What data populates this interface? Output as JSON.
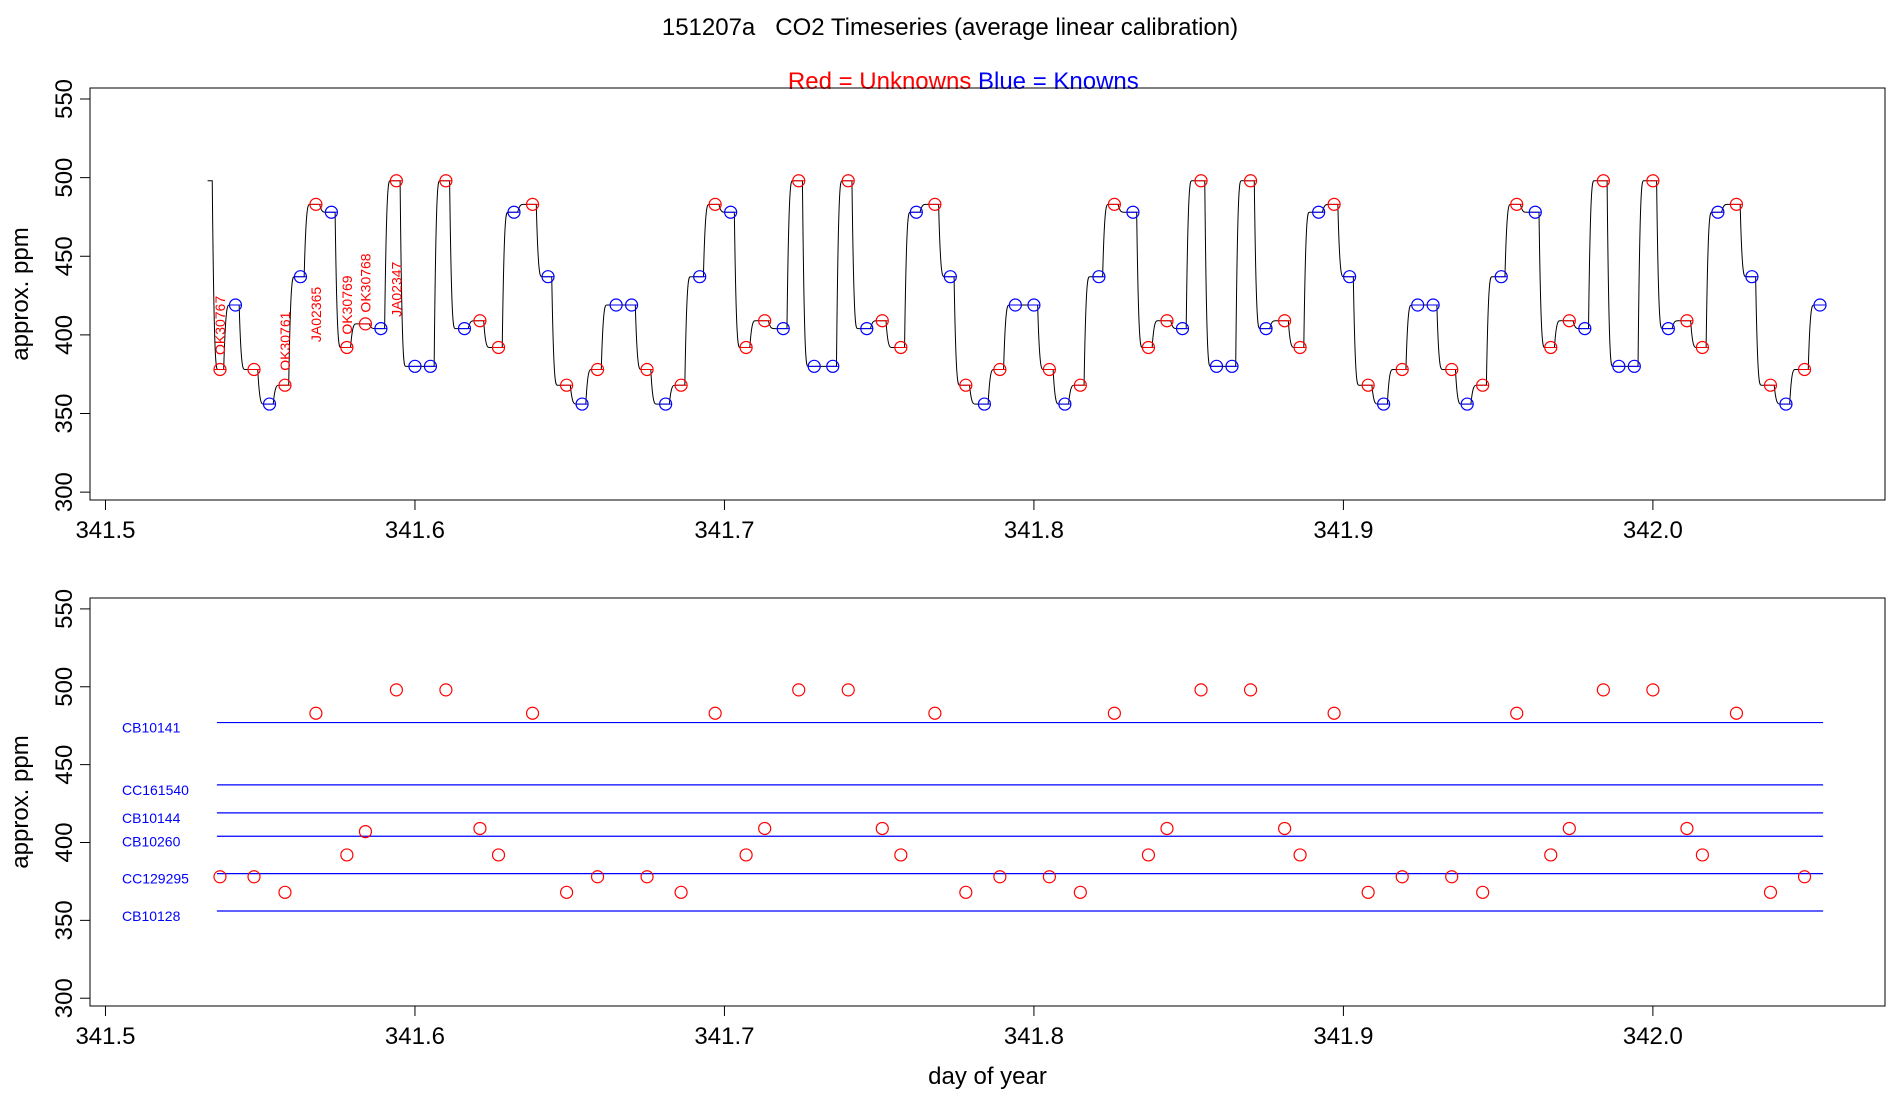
{
  "figure": {
    "title": "151207a   CO2 Timeseries (average linear calibration)",
    "subtitle_parts": [
      {
        "text": "Red = Unknowns",
        "color": "#ff0000"
      },
      {
        "text": " Blue = Knowns",
        "color": "#0000ff"
      }
    ]
  },
  "colors": {
    "unknown": "#ff0000",
    "known": "#0000ff",
    "trace": "#000000"
  },
  "chart_data": [
    {
      "type": "line",
      "panel": "top",
      "xlabel": "",
      "ylabel": "approx. ppm",
      "xlim": [
        341.495,
        342.075
      ],
      "ylim": [
        295,
        557
      ],
      "x_ticks": [
        341.5,
        341.6,
        341.7,
        341.8,
        341.9,
        342.0
      ],
      "x_tick_labels": [
        "341.5",
        "341.6",
        "341.7",
        "341.8",
        "341.9",
        "342.0"
      ],
      "y_ticks": [
        300,
        350,
        400,
        450,
        500,
        550
      ],
      "y_tick_labels": [
        "300",
        "350",
        "400",
        "450",
        "500",
        "550"
      ],
      "trace_start": {
        "x": 341.533,
        "y": 498
      },
      "series": [
        {
          "name": "Unknowns",
          "color": "#ff0000",
          "points": [
            [
              341.537,
              378
            ],
            [
              341.548,
              378
            ],
            [
              341.558,
              368
            ],
            [
              341.568,
              483
            ],
            [
              341.578,
              392
            ],
            [
              341.584,
              407
            ],
            [
              341.594,
              498
            ],
            [
              341.61,
              498
            ],
            [
              341.621,
              409
            ],
            [
              341.627,
              392
            ],
            [
              341.638,
              483
            ],
            [
              341.649,
              368
            ],
            [
              341.659,
              378
            ],
            [
              341.675,
              378
            ],
            [
              341.686,
              368
            ],
            [
              341.697,
              483
            ],
            [
              341.707,
              392
            ],
            [
              341.713,
              409
            ],
            [
              341.724,
              498
            ],
            [
              341.74,
              498
            ],
            [
              341.751,
              409
            ],
            [
              341.757,
              392
            ],
            [
              341.768,
              483
            ],
            [
              341.778,
              368
            ],
            [
              341.789,
              378
            ],
            [
              341.805,
              378
            ],
            [
              341.815,
              368
            ],
            [
              341.826,
              483
            ],
            [
              341.837,
              392
            ],
            [
              341.843,
              409
            ],
            [
              341.854,
              498
            ],
            [
              341.87,
              498
            ],
            [
              341.881,
              409
            ],
            [
              341.886,
              392
            ],
            [
              341.897,
              483
            ],
            [
              341.908,
              368
            ],
            [
              341.919,
              378
            ],
            [
              341.935,
              378
            ],
            [
              341.945,
              368
            ],
            [
              341.956,
              483
            ],
            [
              341.967,
              392
            ],
            [
              341.973,
              409
            ],
            [
              341.984,
              498
            ],
            [
              342.0,
              498
            ],
            [
              342.011,
              409
            ],
            [
              342.016,
              392
            ],
            [
              342.027,
              483
            ],
            [
              342.038,
              368
            ],
            [
              342.049,
              378
            ]
          ]
        },
        {
          "name": "Knowns",
          "color": "#0000ff",
          "points": [
            [
              341.542,
              419
            ],
            [
              341.553,
              356
            ],
            [
              341.563,
              437
            ],
            [
              341.573,
              478
            ],
            [
              341.589,
              404
            ],
            [
              341.6,
              380
            ],
            [
              341.605,
              380
            ],
            [
              341.616,
              404
            ],
            [
              341.632,
              478
            ],
            [
              341.643,
              437
            ],
            [
              341.654,
              356
            ],
            [
              341.665,
              419
            ],
            [
              341.67,
              419
            ],
            [
              341.681,
              356
            ],
            [
              341.692,
              437
            ],
            [
              341.702,
              478
            ],
            [
              341.719,
              404
            ],
            [
              341.729,
              380
            ],
            [
              341.735,
              380
            ],
            [
              341.746,
              404
            ],
            [
              341.762,
              478
            ],
            [
              341.773,
              437
            ],
            [
              341.784,
              356
            ],
            [
              341.794,
              419
            ],
            [
              341.8,
              419
            ],
            [
              341.81,
              356
            ],
            [
              341.821,
              437
            ],
            [
              341.832,
              478
            ],
            [
              341.848,
              404
            ],
            [
              341.859,
              380
            ],
            [
              341.864,
              380
            ],
            [
              341.875,
              404
            ],
            [
              341.892,
              478
            ],
            [
              341.902,
              437
            ],
            [
              341.913,
              356
            ],
            [
              341.924,
              419
            ],
            [
              341.929,
              419
            ],
            [
              341.94,
              356
            ],
            [
              341.951,
              437
            ],
            [
              341.962,
              478
            ],
            [
              341.978,
              404
            ],
            [
              341.989,
              380
            ],
            [
              341.994,
              380
            ],
            [
              342.005,
              404
            ],
            [
              342.021,
              478
            ],
            [
              342.032,
              437
            ],
            [
              342.043,
              356
            ],
            [
              342.054,
              419
            ]
          ]
        }
      ],
      "annotations": [
        {
          "text": "OK30767",
          "x": 341.537,
          "y": 406
        },
        {
          "text": "OK30761",
          "x": 341.558,
          "y": 396
        },
        {
          "text": "JA02365",
          "x": 341.568,
          "y": 413
        },
        {
          "text": "OK30769",
          "x": 341.578,
          "y": 419
        },
        {
          "text": "OK30768",
          "x": 341.584,
          "y": 433
        },
        {
          "text": "JA02347",
          "x": 341.594,
          "y": 429
        }
      ]
    },
    {
      "type": "scatter",
      "panel": "bottom",
      "xlabel": "day of year",
      "ylabel": "approx. ppm",
      "xlim": [
        341.495,
        342.075
      ],
      "ylim": [
        295,
        557
      ],
      "x_ticks": [
        341.5,
        341.6,
        341.7,
        341.8,
        341.9,
        342.0
      ],
      "x_tick_labels": [
        "341.5",
        "341.6",
        "341.7",
        "341.8",
        "341.9",
        "342.0"
      ],
      "y_ticks": [
        300,
        350,
        400,
        450,
        500,
        550
      ],
      "y_tick_labels": [
        "300",
        "350",
        "400",
        "450",
        "500",
        "550"
      ],
      "series": [
        {
          "name": "Unknowns",
          "color": "#ff0000",
          "points": [
            [
              341.537,
              378
            ],
            [
              341.548,
              378
            ],
            [
              341.558,
              368
            ],
            [
              341.568,
              483
            ],
            [
              341.578,
              392
            ],
            [
              341.584,
              407
            ],
            [
              341.594,
              498
            ],
            [
              341.61,
              498
            ],
            [
              341.621,
              409
            ],
            [
              341.627,
              392
            ],
            [
              341.638,
              483
            ],
            [
              341.649,
              368
            ],
            [
              341.659,
              378
            ],
            [
              341.675,
              378
            ],
            [
              341.686,
              368
            ],
            [
              341.697,
              483
            ],
            [
              341.707,
              392
            ],
            [
              341.713,
              409
            ],
            [
              341.724,
              498
            ],
            [
              341.74,
              498
            ],
            [
              341.751,
              409
            ],
            [
              341.757,
              392
            ],
            [
              341.768,
              483
            ],
            [
              341.778,
              368
            ],
            [
              341.789,
              378
            ],
            [
              341.805,
              378
            ],
            [
              341.815,
              368
            ],
            [
              341.826,
              483
            ],
            [
              341.837,
              392
            ],
            [
              341.843,
              409
            ],
            [
              341.854,
              498
            ],
            [
              341.87,
              498
            ],
            [
              341.881,
              409
            ],
            [
              341.886,
              392
            ],
            [
              341.897,
              483
            ],
            [
              341.908,
              368
            ],
            [
              341.919,
              378
            ],
            [
              341.935,
              378
            ],
            [
              341.945,
              368
            ],
            [
              341.956,
              483
            ],
            [
              341.967,
              392
            ],
            [
              341.973,
              409
            ],
            [
              341.984,
              498
            ],
            [
              342.0,
              498
            ],
            [
              342.011,
              409
            ],
            [
              342.016,
              392
            ],
            [
              342.027,
              483
            ],
            [
              342.038,
              368
            ],
            [
              342.049,
              378
            ]
          ]
        }
      ],
      "reference_lines": [
        {
          "name": "CB10141",
          "y": 477,
          "x_range": [
            341.536,
            342.055
          ]
        },
        {
          "name": "CC161540",
          "y": 437,
          "x_range": [
            341.536,
            342.055
          ]
        },
        {
          "name": "CB10144",
          "y": 419,
          "x_range": [
            341.536,
            342.055
          ]
        },
        {
          "name": "CB10260",
          "y": 404,
          "x_range": [
            341.536,
            342.055
          ]
        },
        {
          "name": "CC129295",
          "y": 380,
          "x_range": [
            341.536,
            342.055
          ]
        },
        {
          "name": "CB10128",
          "y": 356,
          "x_range": [
            341.536,
            342.055
          ]
        }
      ]
    }
  ]
}
